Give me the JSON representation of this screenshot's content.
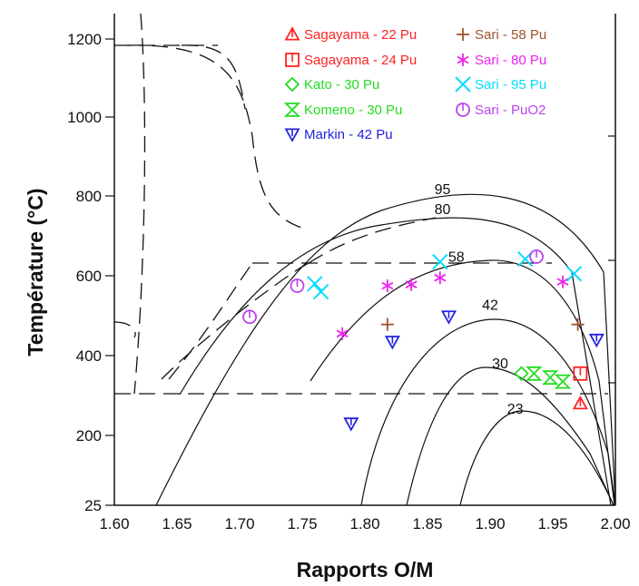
{
  "chart_data": {
    "type": "scatter",
    "xlabel": "Rapports O/M",
    "ylabel": "Température (°C)",
    "xlim": [
      1.6,
      2.0
    ],
    "x_ticks": [
      "1.60",
      "1.65",
      "1.70",
      "1.75",
      "1.80",
      "1.85",
      "1.90",
      "1.95",
      "2.00"
    ],
    "y_ticks": [
      "25",
      "200",
      "400",
      "600",
      "800",
      "1000",
      "1200"
    ],
    "y_tick_values": [
      25,
      200,
      400,
      600,
      800,
      1000,
      1200
    ],
    "curve_labels": [
      {
        "text": "95",
        "x": 1.862,
        "y": 805
      },
      {
        "text": "80",
        "x": 1.862,
        "y": 755
      },
      {
        "text": "58",
        "x": 1.873,
        "y": 635
      },
      {
        "text": "42",
        "x": 1.9,
        "y": 515
      },
      {
        "text": "30",
        "x": 1.908,
        "y": 368
      },
      {
        "text": "23",
        "x": 1.92,
        "y": 255
      }
    ],
    "series": [
      {
        "name": "Sagayama - 22 Pu",
        "marker": "triangle",
        "color": "#ff2222",
        "points": [
          [
            1.972,
            280
          ]
        ]
      },
      {
        "name": "Sagayama - 24 Pu",
        "marker": "square",
        "color": "#ff2222",
        "points": [
          [
            1.972,
            355
          ]
        ]
      },
      {
        "name": "Kato - 30 Pu",
        "marker": "diamond",
        "color": "#22dd22",
        "points": [
          [
            1.925,
            355
          ]
        ]
      },
      {
        "name": "Komeno - 30 Pu",
        "marker": "hourglass",
        "color": "#22dd22",
        "points": [
          [
            1.935,
            355
          ],
          [
            1.948,
            345
          ],
          [
            1.958,
            335
          ]
        ]
      },
      {
        "name": "Markin - 42 Pu",
        "marker": "down-triangle",
        "color": "#2222dd",
        "points": [
          [
            1.789,
            230
          ],
          [
            1.822,
            435
          ],
          [
            1.867,
            498
          ],
          [
            1.985,
            440
          ]
        ]
      },
      {
        "name": "Sari - 58 Pu",
        "marker": "plus",
        "color": "#a0522d",
        "points": [
          [
            1.818,
            478
          ],
          [
            1.97,
            478
          ]
        ]
      },
      {
        "name": "Sari - 80 Pu",
        "marker": "asterisk",
        "color": "#ee22ee",
        "points": [
          [
            1.782,
            455
          ],
          [
            1.818,
            575
          ],
          [
            1.837,
            578
          ],
          [
            1.86,
            595
          ],
          [
            1.958,
            585
          ]
        ]
      },
      {
        "name": "Sari - 95 Pu",
        "marker": "x",
        "color": "#00ddff",
        "points": [
          [
            1.76,
            580
          ],
          [
            1.765,
            560
          ],
          [
            1.86,
            635
          ],
          [
            1.928,
            642
          ],
          [
            1.967,
            605
          ]
        ]
      },
      {
        "name": "Sari - PuO2",
        "marker": "circle",
        "color": "#bb44ee",
        "points": [
          [
            1.708,
            497
          ],
          [
            1.746,
            575
          ],
          [
            1.937,
            648
          ]
        ]
      }
    ]
  }
}
